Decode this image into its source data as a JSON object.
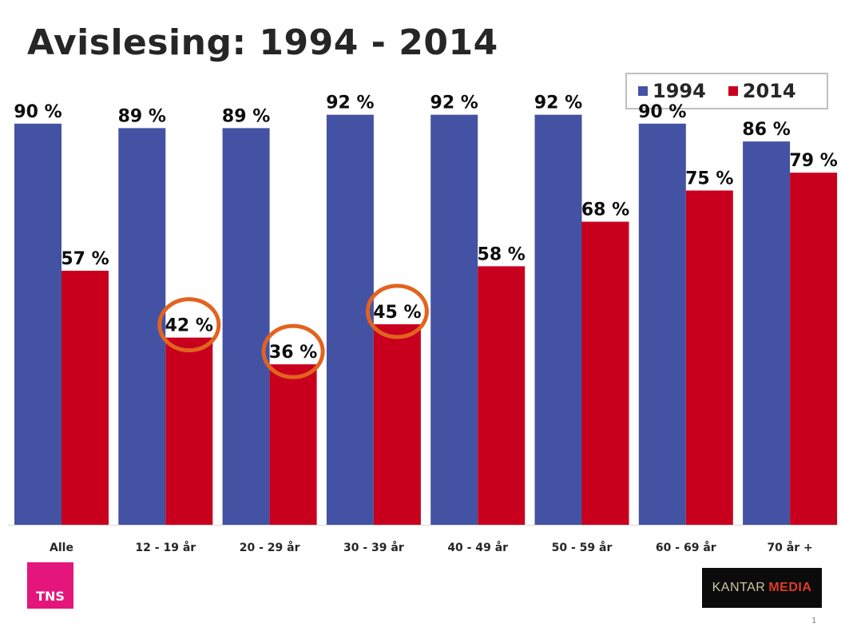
{
  "title": "Avislesing: 1994 - 2014",
  "colors": {
    "series_1994": "#4452a4",
    "series_2014": "#c8001e",
    "highlight_circle": "#e2631e"
  },
  "legend": {
    "items": [
      "1994",
      "2014"
    ]
  },
  "chart_data": {
    "type": "bar",
    "title": "Avislesing: 1994 - 2014",
    "categories": [
      "Alle",
      "12 - 19 år",
      "20 - 29 år",
      "30 - 39 år",
      "40 - 49 år",
      "50 - 59 år",
      "60 - 69 år",
      "70 år +"
    ],
    "series": [
      {
        "name": "1994",
        "values": [
          90,
          89,
          89,
          92,
          92,
          92,
          90,
          86
        ]
      },
      {
        "name": "2014",
        "values": [
          57,
          42,
          36,
          45,
          58,
          68,
          75,
          79
        ]
      }
    ],
    "value_suffix": " %",
    "ylim": [
      0,
      100
    ],
    "highlighted_2014_categories": [
      "12 - 19 år",
      "20 - 29 år",
      "30 - 39 år"
    ],
    "legend_position": "top-right",
    "grid": false
  },
  "logos": {
    "tns": "TNS",
    "kantar_1": "KANTAR",
    "kantar_2": "MEDIA"
  },
  "page_number": "1"
}
